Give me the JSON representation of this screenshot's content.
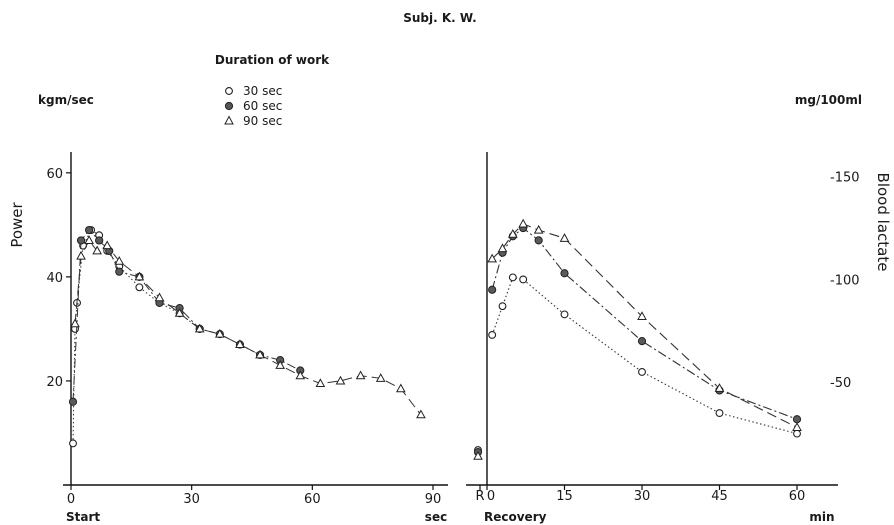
{
  "chart_data": {
    "title": "Subj. K. W.",
    "legend": {
      "title": "Duration of work",
      "entries": [
        {
          "label": "30 sec",
          "marker": "open-circle"
        },
        {
          "label": "60 sec",
          "marker": "filled-circle"
        },
        {
          "label": "90 sec",
          "marker": "open-triangle"
        }
      ],
      "placement": "top-center"
    },
    "panels": [
      {
        "type": "line",
        "ylabel": "Power",
        "yunit": "kgm/sec",
        "xunit": "sec",
        "xstart_label": "Start",
        "xlim": [
          0,
          90
        ],
        "ylim": [
          0,
          64
        ],
        "xticks": [
          "0",
          "30",
          "60",
          "90"
        ],
        "yticks": [
          "20",
          "40",
          "60"
        ],
        "series": [
          {
            "name": "30 sec",
            "marker": "open-circle",
            "line": "dotted",
            "x": [
              0.5,
              1,
              1.5,
              3,
              5,
              7,
              9,
              12,
              17,
              22,
              27,
              32
            ],
            "y": [
              8,
              30,
              35,
              46,
              49,
              48,
              45,
              42,
              38,
              35,
              33,
              30
            ]
          },
          {
            "name": "60 sec",
            "marker": "filled-circle",
            "line": "dash-dot",
            "x": [
              0.5,
              2.5,
              4.5,
              7,
              9.5,
              12,
              17,
              22,
              27,
              32,
              37,
              42,
              47,
              52,
              57
            ],
            "y": [
              16,
              47,
              49,
              47,
              45,
              41,
              40,
              35,
              34,
              30,
              29,
              27,
              25,
              24,
              22
            ]
          },
          {
            "name": "90 sec",
            "marker": "open-triangle",
            "line": "dashed",
            "x": [
              1,
              2.5,
              4.5,
              6.5,
              9,
              12,
              17,
              22,
              27,
              32,
              37,
              42,
              47,
              52,
              57,
              62,
              67,
              72,
              77,
              82,
              87
            ],
            "y": [
              31,
              44,
              47,
              45,
              46,
              43,
              40,
              36,
              33,
              30,
              29,
              27,
              25,
              23,
              21,
              19.5,
              20,
              21,
              20.5,
              18.5,
              13.5
            ]
          }
        ]
      },
      {
        "type": "line",
        "ylabel": "Blood lactate",
        "yunit": "mg/100ml",
        "xunit": "min",
        "xstart_label": "Recovery",
        "rest_tick_label": "R",
        "xlim": [
          0,
          64
        ],
        "ylim": [
          0,
          162
        ],
        "xticks": [
          "0",
          "15",
          "30",
          "45",
          "60"
        ],
        "yticks": [
          "-50",
          "-100",
          "-150"
        ],
        "series": [
          {
            "name": "30 sec",
            "marker": "open-circle",
            "line": "dotted",
            "rest": 17,
            "x": [
              1,
              3,
              5,
              7,
              15,
              30,
              45,
              60
            ],
            "y": [
              73,
              87,
              101,
              100,
              83,
              55,
              35,
              25
            ]
          },
          {
            "name": "60 sec",
            "marker": "filled-circle",
            "line": "dash-dot",
            "rest": 16,
            "x": [
              1,
              3,
              5,
              7,
              10,
              15,
              30,
              45,
              60
            ],
            "y": [
              95,
              113,
              121,
              125,
              119,
              103,
              70,
              46,
              32
            ]
          },
          {
            "name": "90 sec",
            "marker": "open-triangle",
            "line": "dashed",
            "rest": 14,
            "x": [
              1,
              3,
              5,
              7,
              10,
              15,
              30,
              45,
              60
            ],
            "y": [
              110,
              115,
              122,
              127,
              124,
              120,
              82,
              47,
              28
            ]
          }
        ]
      }
    ]
  }
}
